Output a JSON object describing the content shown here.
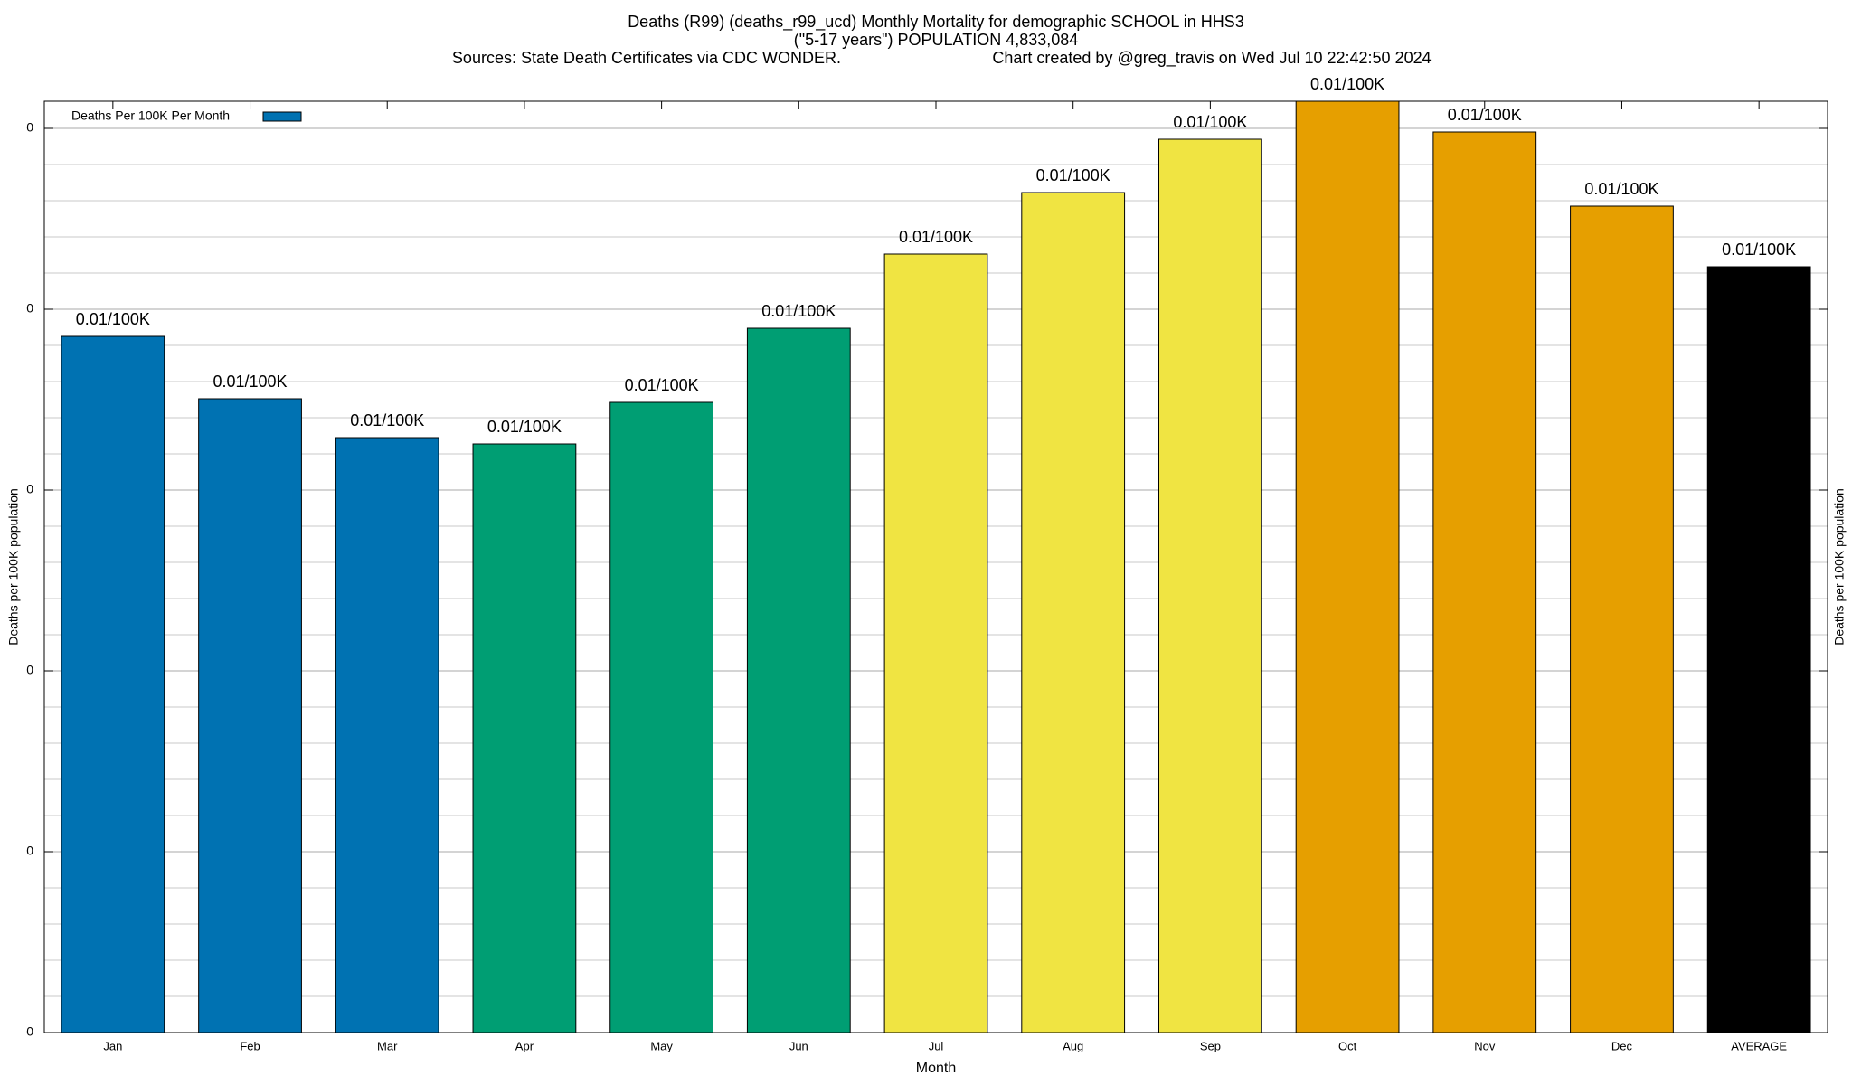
{
  "chart_data": {
    "type": "bar",
    "title": "Deaths (R99) (deaths_r99_ucd) Monthly Mortality for demographic SCHOOL in HHS3",
    "subtitle": "(\"5-17 years\") POPULATION 4,833,084",
    "source": "Sources: State Death Certificates via CDC WONDER.",
    "credit": "Chart created by @greg_travis on Wed Jul 10 22:42:50 2024",
    "x_label": "Month",
    "y_label": "Deaths per 100K population",
    "y2_label": "Deaths per 100K population",
    "categories": [
      "Jan",
      "Feb",
      "Mar",
      "Apr",
      "May",
      "Jun",
      "Jul",
      "Aug",
      "Sep",
      "Oct",
      "Nov",
      "Dec",
      "AVERAGE"
    ],
    "series": [
      {
        "name": "Deaths Per 100K Per Month",
        "color": "#0072b2",
        "colors": [
          "#0072b2",
          "#0072b2",
          "#0072b2",
          "#009e73",
          "#009e73",
          "#009e73",
          "#f0e442",
          "#f0e442",
          "#f0e442",
          "#e69f00",
          "#e69f00",
          "#e69f00",
          "#000000"
        ],
        "values": [
          0.0077,
          0.00701,
          0.00658,
          0.00651,
          0.00697,
          0.00779,
          0.00861,
          0.00929,
          0.00988,
          0.0103,
          0.00996,
          0.00914,
          0.00847
        ],
        "value_labels": [
          "0.01/100K",
          "0.01/100K",
          "0.01/100K",
          "0.01/100K",
          "0.01/100K",
          "0.01/100K",
          "0.01/100K",
          "0.01/100K",
          "0.01/100K",
          "0.01/100K",
          "0.01/100K",
          "0.01/100K",
          "0.01/100K"
        ]
      }
    ],
    "ylim": [
      0,
      0.0103
    ],
    "yticks": [
      0,
      {
        "value": 0.002,
        "label": "0"
      },
      {
        "value": 0.004,
        "label": "0"
      },
      {
        "value": 0.006,
        "label": "0"
      },
      {
        "value": 0.008,
        "label": "0"
      },
      {
        "value": 0.01,
        "label": "0"
      }
    ],
    "y_minor_per_major": 5,
    "grid": true,
    "legend": "top-left"
  }
}
